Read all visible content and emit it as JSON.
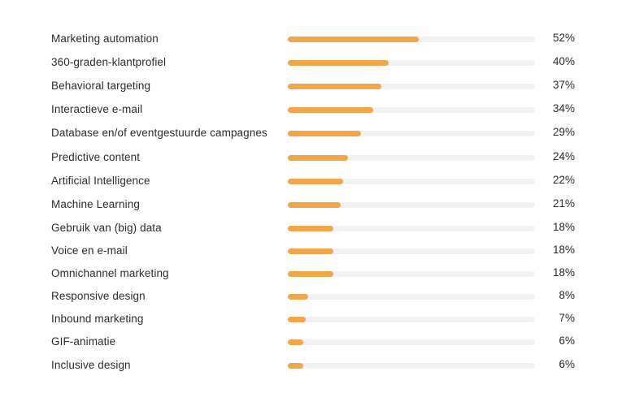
{
  "chart_data": {
    "type": "bar",
    "orientation": "horizontal",
    "title": "",
    "xlabel": "",
    "ylabel": "",
    "xlim": [
      0,
      100
    ],
    "value_suffix": "%",
    "bar_color": "#f2a54a",
    "track_color": "#f1f1f1",
    "categories": [
      "Marketing automation",
      "360-graden-klantprofiel",
      "Behavioral targeting",
      "Interactieve e-mail",
      "Database en/of eventgestuurde campagnes",
      "Predictive content",
      "Artificial Intelligence",
      "Machine Learning",
      "Gebruik van (big) data",
      "Voice en e-mail",
      "Omnichannel marketing",
      "Responsive design",
      "Inbound marketing",
      "GIF-animatie",
      "Inclusive design"
    ],
    "values": [
      52,
      40,
      37,
      34,
      29,
      24,
      22,
      21,
      18,
      18,
      18,
      8,
      7,
      6,
      6
    ],
    "value_labels": [
      "52%",
      "40%",
      "37%",
      "34%",
      "29%",
      "24%",
      "22%",
      "21%",
      "18%",
      "18%",
      "18%",
      "8%",
      "7%",
      "6%",
      "6%"
    ]
  }
}
